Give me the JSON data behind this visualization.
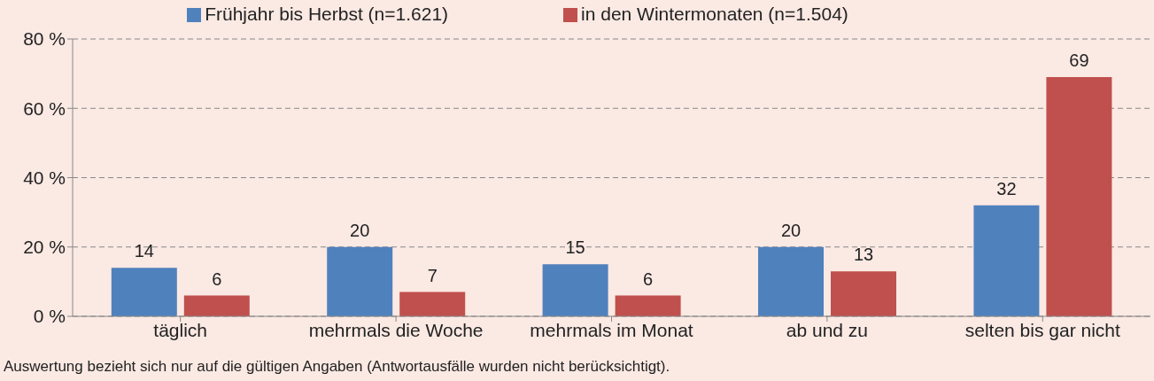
{
  "chart_data": {
    "type": "bar",
    "categories": [
      "täglich",
      "mehrmals die Woche",
      "mehrmals im Monat",
      "ab und zu",
      "selten bis gar nicht"
    ],
    "series": [
      {
        "name": "Frühjahr bis Herbst (n=1.621)",
        "color": "#4f81bd",
        "values": [
          14,
          20,
          15,
          20,
          32
        ]
      },
      {
        "name": "in den Wintermonaten (n=1.504)",
        "color": "#c0504d",
        "values": [
          6,
          7,
          6,
          13,
          69
        ]
      }
    ],
    "ylim": [
      0,
      80
    ],
    "yticks": [
      {
        "value": 0,
        "label": "0 %"
      },
      {
        "value": 20,
        "label": "20 %"
      },
      {
        "value": 40,
        "label": "40 %"
      },
      {
        "value": 60,
        "label": "60 %"
      },
      {
        "value": 80,
        "label": "80 %"
      }
    ],
    "grid": "y",
    "legend": "top",
    "data_labels": true,
    "annotations": [
      "Auswertung bezieht sich nur auf die gültigen Angaben (Antwortausfälle wurden nicht berücksichtigt)."
    ]
  }
}
